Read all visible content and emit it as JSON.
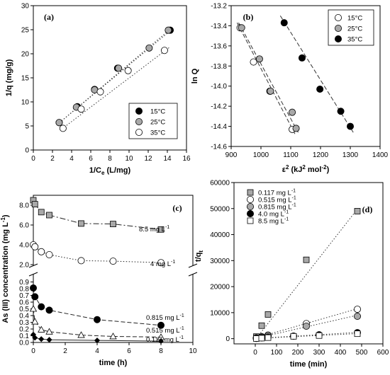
{
  "chart_data": [
    {
      "id": "a",
      "panel_label": "(a)",
      "type": "scatter",
      "xlabel": "1/C",
      "xlabel_sub": "e",
      "xlabel_unit": "(L/mg)",
      "ylabel": "1/q (mg/g)",
      "xlim": [
        0,
        16
      ],
      "ylim": [
        0,
        30
      ],
      "xticks": [
        0,
        2,
        4,
        6,
        8,
        10,
        12,
        14,
        16
      ],
      "yticks": [
        0,
        5,
        10,
        15,
        20,
        25,
        30
      ],
      "legend_position": "bottom-right",
      "series": [
        {
          "name": "15°C",
          "color": "#000000",
          "line": "dotted",
          "points": [
            [
              2.7,
              5.7
            ],
            [
              4.6,
              9.0
            ],
            [
              6.4,
              12.6
            ],
            [
              8.8,
              17.0
            ],
            [
              14.3,
              24.9
            ]
          ],
          "fit": [
            [
              2.5,
              5.3
            ],
            [
              14.5,
              25.1
            ]
          ]
        },
        {
          "name": "25°C",
          "color": "#a8a8a8",
          "line": "dotted",
          "points": [
            [
              2.7,
              5.7
            ],
            [
              4.5,
              8.9
            ],
            [
              6.4,
              12.5
            ],
            [
              8.9,
              17.0
            ],
            [
              12.1,
              21.2
            ],
            [
              14.1,
              24.9
            ]
          ],
          "fit": [
            [
              2.5,
              5.3
            ],
            [
              14.3,
              25.1
            ]
          ]
        },
        {
          "name": "35°C",
          "color": "#ffffff",
          "line": "dotted",
          "points": [
            [
              3.1,
              4.5
            ],
            [
              5.0,
              8.5
            ],
            [
              7.0,
              12.1
            ],
            [
              9.9,
              16.5
            ],
            [
              13.7,
              20.7
            ]
          ],
          "fit": [
            [
              3.0,
              4.4
            ],
            [
              14.2,
              21.3
            ]
          ]
        }
      ]
    },
    {
      "id": "b",
      "panel_label": "(b)",
      "type": "scatter",
      "xlabel": "ε",
      "xlabel_sup": "2",
      "xlabel_unit": " (kJ",
      "xlabel_unit_sup": "2",
      "xlabel_unit2": " mol",
      "xlabel_unit2_sup": "-2",
      "xlabel_end": ")",
      "ylabel": "ln Q",
      "xlim": [
        900,
        1400
      ],
      "ylim": [
        -14.6,
        -13.2
      ],
      "xticks": [
        900,
        1000,
        1100,
        1200,
        1300,
        1400
      ],
      "yticks": [
        -14.6,
        -14.4,
        -14.2,
        -14.0,
        -13.8,
        -13.6,
        -13.4,
        -13.2
      ],
      "ytick_labels": [
        "-14.6",
        "-14.4",
        "-14.2",
        "-14.0",
        "-13.8",
        "-13.6",
        "-13.4",
        "-13.2"
      ],
      "legend_position": "top-right",
      "series": [
        {
          "name": "15°C",
          "color": "#ffffff",
          "line": "dashed",
          "points": [
            [
              930,
              -13.42
            ],
            [
              975,
              -13.76
            ],
            [
              1030,
              -14.05
            ],
            [
              1105,
              -14.43
            ]
          ],
          "fit": [
            [
              920,
              -13.37
            ],
            [
              1115,
              -14.48
            ]
          ]
        },
        {
          "name": "25°C",
          "color": "#a8a8a8",
          "line": "dashed",
          "points": [
            [
              935,
              -13.42
            ],
            [
              995,
              -13.73
            ],
            [
              1032,
              -14.05
            ],
            [
              1105,
              -14.26
            ],
            [
              1118,
              -14.42
            ]
          ],
          "fit": [
            [
              925,
              -13.37
            ],
            [
              1125,
              -14.46
            ]
          ]
        },
        {
          "name": "35°C",
          "color": "#000000",
          "line": "dashed",
          "points": [
            [
              1078,
              -13.37
            ],
            [
              1138,
              -13.72
            ],
            [
              1198,
              -14.03
            ],
            [
              1268,
              -14.25
            ],
            [
              1300,
              -14.4
            ]
          ],
          "fit": [
            [
              1065,
              -13.3
            ],
            [
              1310,
              -14.46
            ]
          ]
        }
      ]
    },
    {
      "id": "c",
      "panel_label": "(c)",
      "type": "line",
      "xlabel": "time (h)",
      "ylabel": "As (III) concentration (mg L",
      "ylabel_sup": "-1",
      "ylabel_end": ")",
      "xlim": [
        0,
        10
      ],
      "xticks": [
        0,
        2,
        4,
        6,
        8,
        10
      ],
      "upper_ylim": [
        2.0,
        9.0
      ],
      "upper_yticks": [
        2.0,
        4.0,
        6.0,
        8.0
      ],
      "upper_ytick_labels": [
        "2.0",
        "4.0",
        "6.0",
        "8.0"
      ],
      "lower_ylim": [
        0.0,
        1.0
      ],
      "lower_yticks": [
        0.0,
        0.1,
        0.2,
        0.3,
        0.4,
        0.5,
        0.6,
        0.7,
        0.8,
        0.9
      ],
      "lower_ytick_labels": [
        "0.0",
        "0.1",
        "0.2",
        "0.3",
        "0.4",
        "0.5",
        "0.6",
        "0.7",
        "0.8",
        "0.9"
      ],
      "series": [
        {
          "name": "8.5 mg L",
          "name_sup": "-1",
          "marker": "square",
          "color": "#a8a8a8",
          "line": "dashdot",
          "segment": "upper",
          "points": [
            [
              0,
              8.5
            ],
            [
              0.1,
              8.1
            ],
            [
              0.5,
              7.3
            ],
            [
              1,
              7.0
            ],
            [
              3,
              6.15
            ],
            [
              5,
              6.1
            ],
            [
              8,
              5.55
            ]
          ]
        },
        {
          "name": "4 mg L",
          "name_sup": "-1",
          "marker": "circle",
          "color": "#ffffff",
          "line": "dotted",
          "segment": "upper",
          "points": [
            [
              0,
              4.0
            ],
            [
              0.1,
              3.8
            ],
            [
              0.5,
              3.3
            ],
            [
              1,
              3.0
            ],
            [
              3,
              2.4
            ],
            [
              5,
              2.35
            ],
            [
              8,
              2.2
            ]
          ]
        },
        {
          "name": "0.815 mg L",
          "name_sup": "-1",
          "marker": "circle",
          "color": "#000000",
          "line": "dashed",
          "segment": "lower",
          "points": [
            [
              0,
              0.81
            ],
            [
              0.1,
              0.68
            ],
            [
              0.5,
              0.53
            ],
            [
              1,
              0.48
            ],
            [
              4,
              0.34
            ],
            [
              8,
              0.255
            ]
          ]
        },
        {
          "name": "0.515 mg L",
          "name_sup": "-1",
          "marker": "triangle",
          "color": "#ffffff",
          "line": "dashed",
          "segment": "lower",
          "points": [
            [
              0,
              0.5
            ],
            [
              0.1,
              0.31
            ],
            [
              0.5,
              0.19
            ],
            [
              1,
              0.16
            ],
            [
              3,
              0.11
            ],
            [
              5,
              0.09
            ],
            [
              8,
              0.08
            ]
          ]
        },
        {
          "name": "0.117 mg L",
          "name_sup": "-1",
          "marker": "diamond",
          "color": "#000000",
          "line": "solid",
          "segment": "lower",
          "points": [
            [
              0,
              0.117
            ],
            [
              0.1,
              0.07
            ],
            [
              0.5,
              0.05
            ],
            [
              1,
              0.04
            ],
            [
              4,
              0.03
            ],
            [
              8,
              0.02
            ]
          ]
        }
      ]
    },
    {
      "id": "d",
      "panel_label": "(d)",
      "type": "scatter",
      "xlabel": "time  (min)",
      "ylabel": "t/q",
      "ylabel_sub": "t",
      "xlim": [
        -100,
        600
      ],
      "ylim": [
        -2000,
        60000
      ],
      "xticks": [
        0,
        100,
        200,
        300,
        400,
        500,
        600
      ],
      "yticks": [
        0,
        10000,
        20000,
        30000,
        40000,
        50000,
        60000
      ],
      "legend_position": "top-left",
      "series": [
        {
          "name": "0.117 mg L",
          "name_sup": "-1",
          "marker": "square",
          "color": "#a8a8a8",
          "line": "dotted",
          "points": [
            [
              5,
              800
            ],
            [
              30,
              5000
            ],
            [
              60,
              9300
            ],
            [
              240,
              30300
            ],
            [
              480,
              49000
            ]
          ],
          "fit": [
            [
              0,
              -400
            ],
            [
              480,
              49800
            ]
          ]
        },
        {
          "name": "0.515 mg L",
          "name_sup": "-1",
          "marker": "circle",
          "color": "#ffffff",
          "line": "dotted",
          "points": [
            [
              5,
              300
            ],
            [
              30,
              800
            ],
            [
              60,
              1400
            ],
            [
              240,
              5800
            ],
            [
              480,
              11300
            ]
          ],
          "fit": [
            [
              0,
              200
            ],
            [
              480,
              11500
            ]
          ]
        },
        {
          "name": "0.815 mg L",
          "name_sup": "-1",
          "marker": "circle",
          "color": "#a8a8a8",
          "line": "dotted",
          "points": [
            [
              5,
              200
            ],
            [
              30,
              600
            ],
            [
              60,
              1100
            ],
            [
              240,
              4800
            ],
            [
              480,
              8600
            ]
          ],
          "fit": [
            [
              0,
              100
            ],
            [
              480,
              9000
            ]
          ]
        },
        {
          "name": "4.0 mg L",
          "name_sup": "-1",
          "marker": "circle",
          "color": "#000000",
          "line": "dotted",
          "points": [
            [
              5,
              100
            ],
            [
              30,
              300
            ],
            [
              60,
              600
            ],
            [
              180,
              1000
            ],
            [
              300,
              1500
            ],
            [
              480,
              2300
            ]
          ],
          "fit": [
            [
              0,
              100
            ],
            [
              480,
              2400
            ]
          ]
        },
        {
          "name": "8.5 mg L",
          "name_sup": "-1",
          "marker": "square",
          "color": "#ffffff",
          "line": "dotted",
          "points": [
            [
              5,
              50
            ],
            [
              30,
              200
            ],
            [
              60,
              400
            ],
            [
              180,
              900
            ],
            [
              300,
              1200
            ],
            [
              480,
              1900
            ]
          ],
          "fit": [
            [
              0,
              50
            ],
            [
              480,
              1950
            ]
          ]
        }
      ]
    }
  ]
}
